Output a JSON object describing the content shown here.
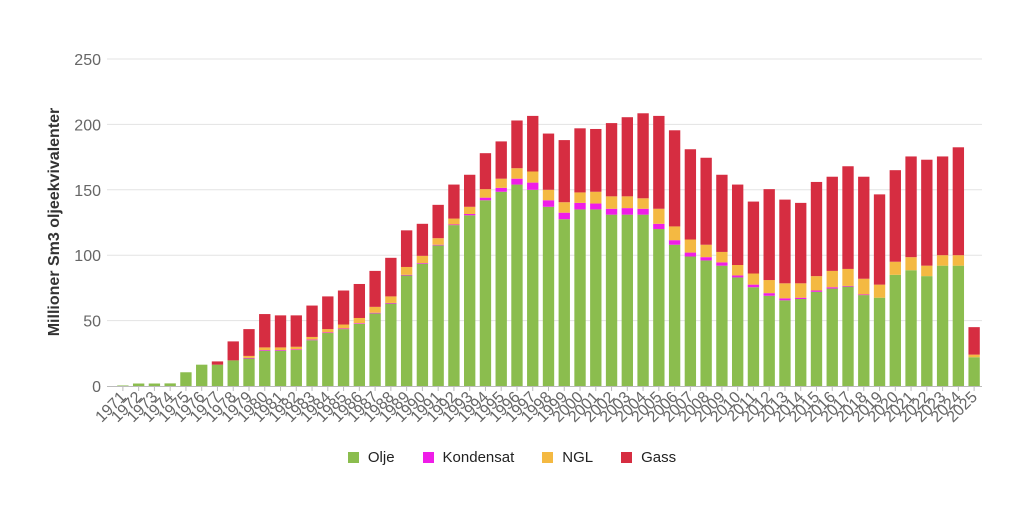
{
  "chart_data": {
    "type": "bar",
    "stacked": true,
    "ylabel": "Millioner Sm3 oljeekvivalenter",
    "xlabel": "",
    "ylim": [
      0,
      250
    ],
    "yticks": [
      0,
      50,
      100,
      150,
      200,
      250
    ],
    "grid": true,
    "legend_position": "bottom",
    "categories": [
      "1971",
      "1972",
      "1973",
      "1974",
      "1975",
      "1976",
      "1977",
      "1978",
      "1979",
      "1980",
      "1981",
      "1982",
      "1983",
      "1984",
      "1985",
      "1986",
      "1987",
      "1988",
      "1989",
      "1990",
      "1991",
      "1992",
      "1993",
      "1994",
      "1995",
      "1996",
      "1997",
      "1998",
      "1999",
      "2000",
      "2001",
      "2002",
      "2003",
      "2004",
      "2005",
      "2006",
      "2007",
      "2008",
      "2009",
      "2010",
      "2011",
      "2012",
      "2013",
      "2014",
      "2015",
      "2016",
      "2017",
      "2018",
      "2019",
      "2020",
      "2021",
      "2022",
      "2023",
      "2024",
      "2025"
    ],
    "series": [
      {
        "name": "Olje",
        "color": "#8bbd4e",
        "values": [
          0.4,
          1.9,
          1.9,
          2.0,
          10.5,
          16.3,
          16.3,
          19.6,
          21.0,
          27.0,
          27.0,
          27.5,
          35.0,
          40.5,
          43.5,
          47.5,
          55.5,
          63.0,
          84.5,
          93.5,
          107.5,
          123.0,
          130.5,
          142.0,
          148.5,
          154.0,
          150.0,
          137.0,
          127.5,
          135.0,
          135.0,
          131.0,
          131.0,
          131.0,
          120.0,
          108.0,
          99.0,
          96.0,
          92.0,
          83.0,
          75.5,
          69.0,
          65.5,
          66.5,
          72.0,
          74.5,
          76.0,
          69.5,
          67.5,
          85.0,
          88.5,
          84.0,
          92.0,
          92.0,
          22.0
        ]
      },
      {
        "name": "Kondensat",
        "color": "#ef1de8",
        "values": [
          0,
          0,
          0,
          0,
          0,
          0,
          0,
          0,
          0.5,
          0.5,
          0.5,
          0.5,
          0.5,
          0.5,
          0.5,
          0.5,
          0.5,
          0.5,
          0.5,
          0.5,
          0.5,
          0.5,
          1.0,
          2.0,
          3.0,
          4.5,
          5.5,
          5.0,
          5.0,
          5.0,
          4.5,
          4.5,
          5.0,
          4.5,
          4.0,
          3.5,
          3.0,
          2.5,
          2.5,
          1.5,
          2.0,
          2.0,
          1.5,
          1.0,
          1.0,
          1.0,
          0.5,
          0.5,
          0,
          0,
          0,
          0,
          0,
          0,
          0
        ]
      },
      {
        "name": "NGL",
        "color": "#f4b942",
        "values": [
          0,
          0,
          0,
          0,
          0,
          0,
          0,
          0,
          1.5,
          2.0,
          2.0,
          2.0,
          2.0,
          2.5,
          3.0,
          4.0,
          4.5,
          5.0,
          6.0,
          5.5,
          5.0,
          4.5,
          5.5,
          6.5,
          7.0,
          8.0,
          8.5,
          8.0,
          8.0,
          8.0,
          9.0,
          9.5,
          9.0,
          8.0,
          11.5,
          10.5,
          10.0,
          9.5,
          8.0,
          8.0,
          8.5,
          10.0,
          11.5,
          11.0,
          11.0,
          12.5,
          13.0,
          12.0,
          10.0,
          10.0,
          10.0,
          8.0,
          8.0,
          8.0,
          2.0
        ]
      },
      {
        "name": "Gass",
        "color": "#d62d41",
        "values": [
          0,
          0,
          0,
          0,
          0,
          0,
          2.5,
          14.5,
          20.5,
          25.5,
          24.5,
          24.0,
          24.0,
          25.0,
          26.0,
          26.0,
          27.5,
          29.5,
          28.0,
          24.5,
          25.5,
          26.0,
          24.5,
          27.5,
          28.5,
          36.5,
          42.5,
          43.0,
          47.5,
          49.0,
          48.0,
          56.0,
          60.5,
          65.0,
          71.0,
          73.5,
          69.0,
          66.5,
          59.0,
          61.5,
          55.0,
          69.5,
          64.0,
          61.5,
          72.0,
          72.0,
          78.5,
          78.0,
          69.0,
          70.0,
          77.0,
          81.0,
          75.5,
          82.5,
          21.0
        ]
      }
    ]
  }
}
